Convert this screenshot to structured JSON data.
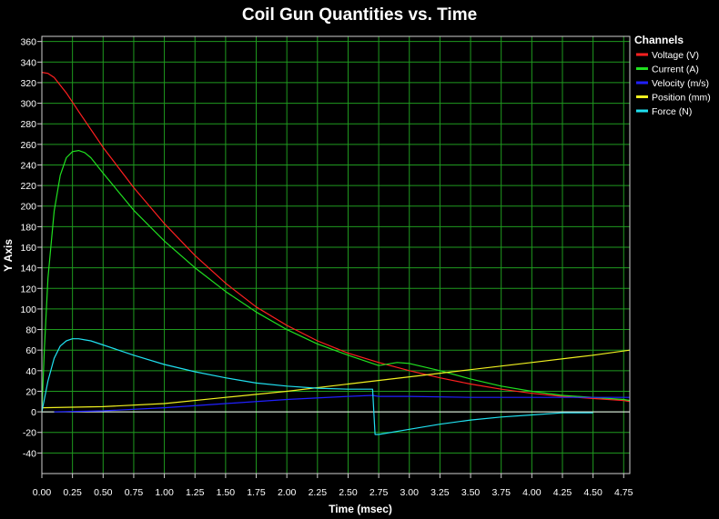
{
  "chart_data": {
    "type": "line",
    "title": "Coil Gun Quantities vs. Time",
    "xlabel": "Time (msec)",
    "ylabel": "Y Axis",
    "xlim": [
      0,
      4.8
    ],
    "ylim": [
      -60,
      365
    ],
    "x_ticks": [
      "0.00",
      "0.25",
      "0.50",
      "0.75",
      "1.00",
      "1.25",
      "1.50",
      "1.75",
      "2.00",
      "2.25",
      "2.50",
      "2.75",
      "3.00",
      "3.25",
      "3.50",
      "3.75",
      "4.00",
      "4.25",
      "4.50",
      "4.75"
    ],
    "y_ticks": [
      "-40",
      "-20",
      "0",
      "20",
      "40",
      "60",
      "80",
      "100",
      "120",
      "140",
      "160",
      "180",
      "200",
      "220",
      "240",
      "260",
      "280",
      "300",
      "320",
      "340",
      "360"
    ],
    "grid": true,
    "background": "#000000",
    "grid_color": "#1f9a1f",
    "legend_title": "Channels",
    "legend_position": "right",
    "series": [
      {
        "name": "Voltage (V)",
        "color": "#ff2020",
        "x": [
          0,
          0.05,
          0.1,
          0.2,
          0.3,
          0.5,
          0.75,
          1.0,
          1.25,
          1.5,
          1.75,
          2.0,
          2.25,
          2.5,
          2.75,
          3.0,
          3.25,
          3.5,
          3.75,
          4.0,
          4.25,
          4.5,
          4.75,
          4.8
        ],
        "y": [
          330,
          329,
          325,
          310,
          292,
          257,
          218,
          183,
          152,
          125,
          102,
          84,
          69,
          57,
          48,
          40,
          33,
          27,
          22,
          18,
          15,
          13,
          11,
          10
        ]
      },
      {
        "name": "Current (A)",
        "color": "#20e020",
        "x": [
          0,
          0.02,
          0.05,
          0.1,
          0.15,
          0.2,
          0.25,
          0.3,
          0.35,
          0.4,
          0.5,
          0.75,
          1.0,
          1.25,
          1.5,
          1.75,
          2.0,
          2.25,
          2.5,
          2.75,
          2.9,
          3.0,
          3.25,
          3.5,
          3.75,
          4.0,
          4.25,
          4.5,
          4.75,
          4.8
        ],
        "y": [
          0,
          60,
          130,
          195,
          230,
          247,
          253,
          254,
          252,
          247,
          232,
          196,
          166,
          140,
          117,
          97,
          80,
          66,
          55,
          45,
          48,
          47,
          40,
          32,
          25,
          20,
          16,
          14,
          12,
          11
        ]
      },
      {
        "name": "Velocity (m/s)",
        "color": "#2020ff",
        "x": [
          0.1,
          0.5,
          1.0,
          1.5,
          2.0,
          2.5,
          2.7,
          2.75,
          3.0,
          3.5,
          4.0,
          4.5,
          4.75,
          4.8
        ],
        "y": [
          0,
          1,
          4,
          8,
          12,
          15,
          16,
          15,
          15,
          14,
          14,
          14,
          14,
          14
        ]
      },
      {
        "name": "Position (mm)",
        "color": "#f0f020",
        "x": [
          0,
          0.5,
          1.0,
          1.5,
          2.0,
          2.5,
          3.0,
          3.5,
          4.0,
          4.5,
          4.8
        ],
        "y": [
          4,
          5,
          8,
          14,
          20,
          27,
          34,
          41,
          48,
          55,
          60
        ]
      },
      {
        "name": "Force (N)",
        "color": "#20e0f0",
        "x": [
          0,
          0.05,
          0.1,
          0.15,
          0.2,
          0.25,
          0.3,
          0.35,
          0.4,
          0.5,
          0.75,
          1.0,
          1.25,
          1.5,
          1.75,
          2.0,
          2.25,
          2.5,
          2.7,
          2.72,
          2.75,
          3.0,
          3.25,
          3.5,
          3.75,
          4.0,
          4.25,
          4.5
        ],
        "y": [
          0,
          30,
          52,
          64,
          69,
          71,
          71,
          70,
          69,
          65,
          55,
          46,
          39,
          33,
          28,
          25,
          23,
          22,
          22,
          -22,
          -22,
          -17,
          -12,
          -8,
          -5,
          -3,
          -1,
          -1
        ]
      }
    ]
  }
}
